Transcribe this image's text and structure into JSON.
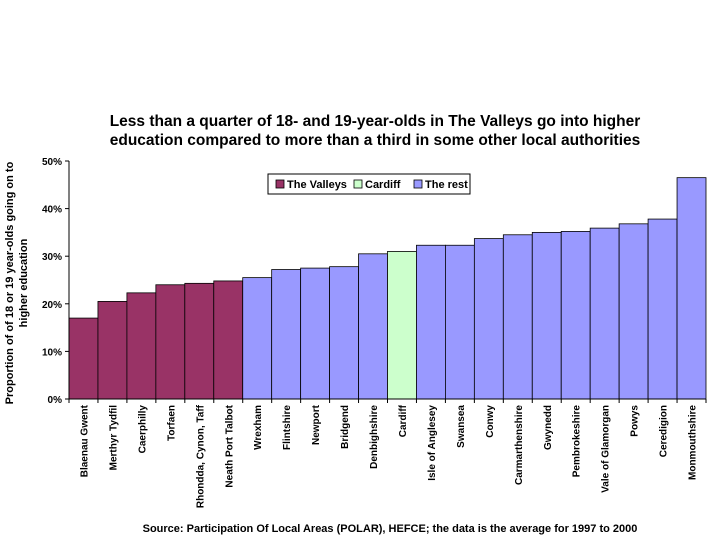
{
  "chart_data": {
    "type": "bar",
    "title_lines": [
      "Less than a quarter of 18- and 19-year-olds in The Valleys go into higher",
      "education compared to more than a third in some other local authorities"
    ],
    "ylabel_lines": [
      "Proportion of of 18 or 19 year-olds going on to",
      "higher education"
    ],
    "xlabel": "",
    "ylim": [
      0,
      50
    ],
    "yticks": [
      0,
      10,
      20,
      30,
      40,
      50
    ],
    "ytick_labels": [
      "0%",
      "10%",
      "20%",
      "30%",
      "40%",
      "50%"
    ],
    "grid": false,
    "legend_position": "top-center",
    "series": [
      {
        "name": "The Valleys",
        "color": "#993366"
      },
      {
        "name": "Cardiff",
        "color": "#ccffcc"
      },
      {
        "name": "The rest",
        "color": "#9999ff"
      }
    ],
    "categories": [
      "Blaenau Gwent",
      "Merthyr Tydfil",
      "Caerphilly",
      "Torfaen",
      "Rhondda, Cynon, Taff",
      "Neath Port Talbot",
      "Wrexham",
      "Flintshire",
      "Newport",
      "Bridgend",
      "Denbighshire",
      "Cardiff",
      "Isle of Anglesey",
      "Swansea",
      "Conwy",
      "Carmarthenshire",
      "Gwynedd",
      "Pembrokeshire",
      "Vale of Glamorgan",
      "Powys",
      "Ceredigion",
      "Monmouthshire"
    ],
    "values": [
      17.0,
      20.5,
      22.3,
      24.0,
      24.3,
      24.8,
      25.5,
      27.2,
      27.5,
      27.8,
      30.5,
      31.0,
      32.3,
      32.3,
      33.7,
      34.5,
      35.0,
      35.2,
      35.9,
      36.8,
      37.8,
      46.5
    ],
    "groups": [
      "The Valleys",
      "The Valleys",
      "The Valleys",
      "The Valleys",
      "The Valleys",
      "The Valleys",
      "The rest",
      "The rest",
      "The rest",
      "The rest",
      "The rest",
      "Cardiff",
      "The rest",
      "The rest",
      "The rest",
      "The rest",
      "The rest",
      "The rest",
      "The rest",
      "The rest",
      "The rest",
      "The rest"
    ]
  },
  "source": "Source: Participation Of Local Areas (POLAR), HEFCE; the data is the average for 1997 to 2000"
}
